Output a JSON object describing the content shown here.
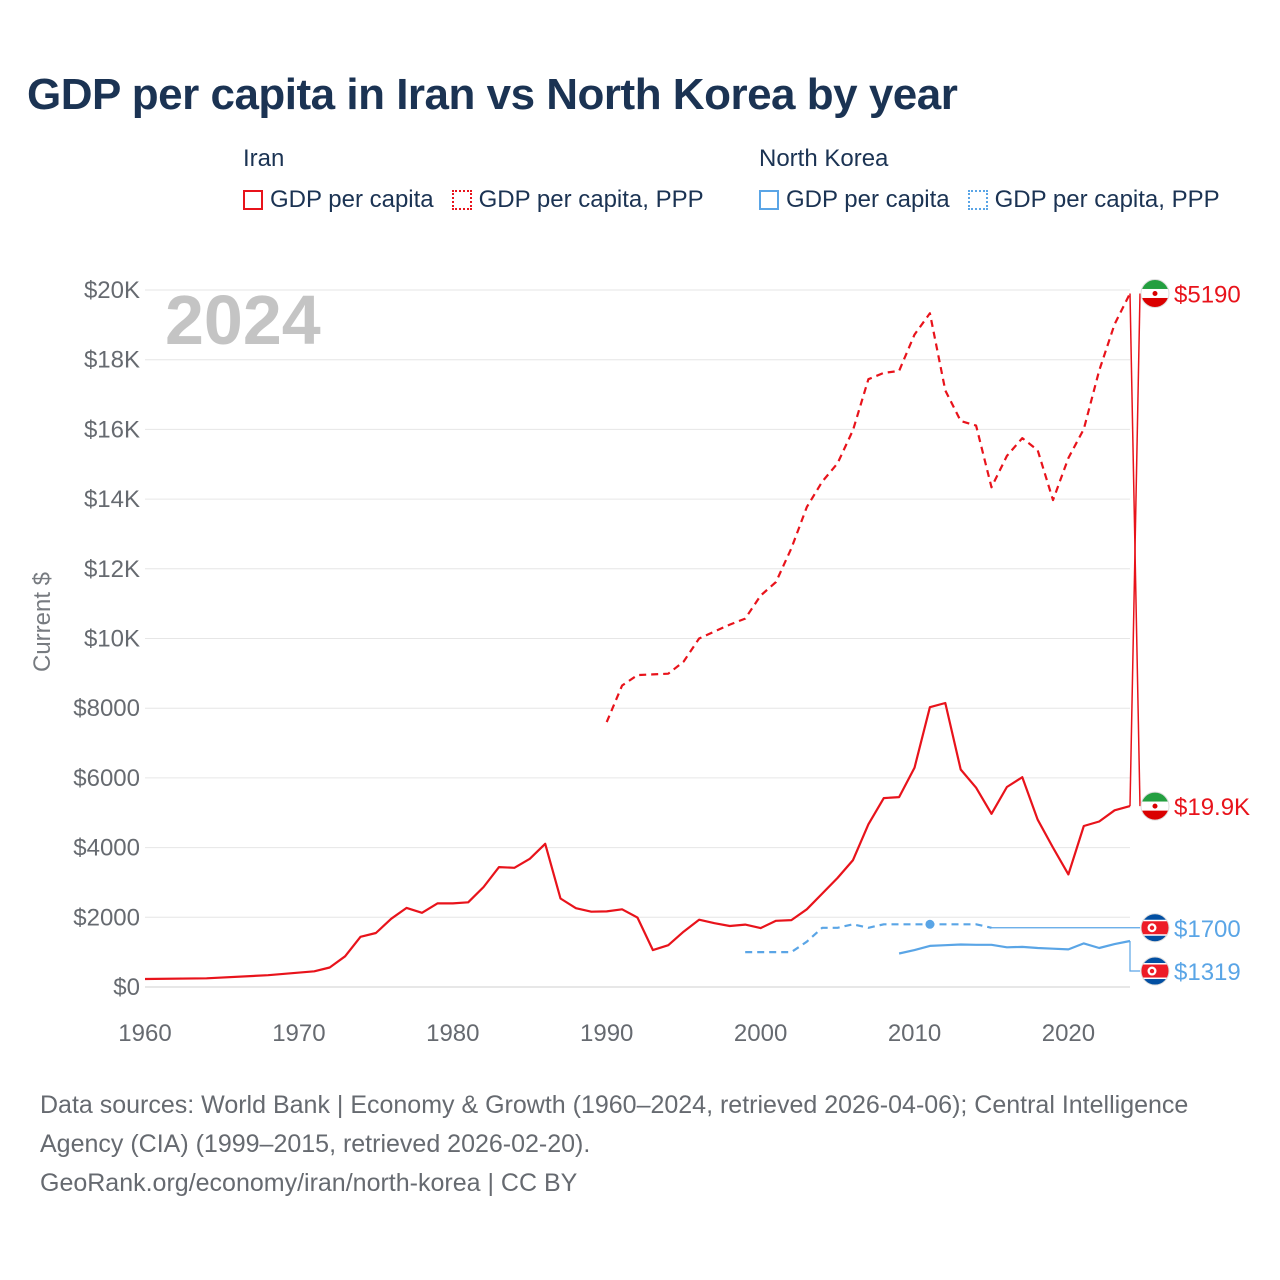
{
  "title": "GDP per capita in Iran vs North Korea by year",
  "legend": {
    "groups": [
      {
        "name": "Iran",
        "color": "#e8131b",
        "items": [
          {
            "label": "GDP per capita",
            "style": "solid"
          },
          {
            "label": "GDP per capita, PPP",
            "style": "dotted"
          }
        ]
      },
      {
        "name": "North Korea",
        "color": "#5aa5e6",
        "items": [
          {
            "label": "GDP per capita",
            "style": "solid"
          },
          {
            "label": "GDP per capita, PPP",
            "style": "dotted"
          }
        ]
      }
    ]
  },
  "footer": {
    "line1": "Data sources: World Bank | Economy & Growth (1960–2024, retrieved 2026-04-06); Central Intelligence Agency (CIA) (1999–2015, retrieved 2026-02-20).",
    "line2": "GeoRank.org/economy/iran/north-korea | CC BY"
  },
  "chart_data": {
    "type": "line",
    "title": "GDP per capita in Iran vs North Korea by year",
    "year_label": "2024",
    "ylabel": "Current $",
    "xlabel": "",
    "xlim": [
      1960,
      2024
    ],
    "ylim": [
      0,
      20000
    ],
    "grid": true,
    "x_ticks": [
      1960,
      1970,
      1980,
      1990,
      2000,
      2010,
      2020
    ],
    "x_tick_labels": [
      "1960",
      "1970",
      "1980",
      "1990",
      "2000",
      "2010",
      "2020"
    ],
    "y_ticks": [
      0,
      2000,
      4000,
      6000,
      8000,
      10000,
      12000,
      14000,
      16000,
      18000,
      20000
    ],
    "y_tick_labels": [
      "$0",
      "$2000",
      "$4000",
      "$6000",
      "$8000",
      "$10K",
      "$12K",
      "$14K",
      "$16K",
      "$18K",
      "$20K"
    ],
    "series": [
      {
        "name": "Iran GDP per capita",
        "country": "Iran",
        "color": "#e8131b",
        "dash": "solid",
        "end_label": "$5190",
        "flag": "iran",
        "x": [
          1960,
          1964,
          1968,
          1971,
          1972,
          1973,
          1974,
          1975,
          1976,
          1977,
          1978,
          1979,
          1980,
          1981,
          1982,
          1983,
          1984,
          1985,
          1986,
          1987,
          1988,
          1989,
          1990,
          1991,
          1992,
          1993,
          1994,
          1995,
          1996,
          1997,
          1998,
          1999,
          2000,
          2001,
          2002,
          2003,
          2004,
          2005,
          2006,
          2007,
          2008,
          2009,
          2010,
          2011,
          2012,
          2013,
          2014,
          2015,
          2016,
          2017,
          2018,
          2019,
          2020,
          2021,
          2022,
          2023,
          2024
        ],
        "y": [
          230,
          250,
          340,
          450,
          560,
          880,
          1440,
          1550,
          1960,
          2270,
          2130,
          2400,
          2400,
          2430,
          2870,
          3440,
          3420,
          3680,
          4110,
          2540,
          2260,
          2160,
          2170,
          2230,
          1990,
          1060,
          1200,
          1590,
          1930,
          1830,
          1750,
          1790,
          1690,
          1900,
          1920,
          2230,
          2680,
          3130,
          3640,
          4670,
          5420,
          5450,
          6290,
          8030,
          8150,
          6240,
          5720,
          4970,
          5740,
          6020,
          4800,
          4000,
          3230,
          4620,
          4750,
          5070,
          5190
        ]
      },
      {
        "name": "Iran GDP per capita, PPP",
        "country": "Iran",
        "color": "#e8131b",
        "dash": "dashed",
        "end_label": "$19.9K",
        "flag": "iran",
        "x": [
          1990,
          1991,
          1992,
          1993,
          1994,
          1995,
          1996,
          1997,
          1998,
          1999,
          2000,
          2001,
          2002,
          2003,
          2004,
          2005,
          2006,
          2007,
          2008,
          2009,
          2010,
          2011,
          2012,
          2013,
          2014,
          2015,
          2016,
          2017,
          2018,
          2019,
          2020,
          2021,
          2022,
          2023,
          2024
        ],
        "y": [
          7600,
          8650,
          8950,
          8970,
          8990,
          9340,
          10000,
          10200,
          10400,
          10570,
          11230,
          11620,
          12590,
          13770,
          14500,
          15030,
          15980,
          17440,
          17620,
          17680,
          18720,
          19330,
          17120,
          16240,
          16110,
          14340,
          15240,
          15750,
          15400,
          13970,
          15180,
          16010,
          17690,
          19020,
          19900
        ]
      },
      {
        "name": "North Korea GDP per capita",
        "country": "North Korea",
        "color": "#5aa5e6",
        "dash": "solid",
        "end_label": "$1319",
        "flag": "north-korea",
        "x": [
          2009,
          2010,
          2011,
          2012,
          2013,
          2014,
          2015,
          2016,
          2017,
          2018,
          2019,
          2020,
          2021,
          2022,
          2023,
          2024
        ],
        "y": [
          960,
          1060,
          1180,
          1200,
          1220,
          1210,
          1210,
          1140,
          1150,
          1120,
          1100,
          1080,
          1250,
          1120,
          1230,
          1319
        ]
      },
      {
        "name": "North Korea GDP per capita, PPP",
        "country": "North Korea",
        "color": "#5aa5e6",
        "dash": "dashed",
        "end_label": "$1700",
        "flag": "north-korea",
        "x": [
          1999,
          2000,
          2001,
          2002,
          2003,
          2004,
          2005,
          2006,
          2007,
          2008,
          2009,
          2010,
          2011,
          2012,
          2013,
          2014,
          2015
        ],
        "y": [
          1000,
          1000,
          1000,
          1000,
          1300,
          1700,
          1700,
          1800,
          1700,
          1800,
          1800,
          1800,
          1800,
          1800,
          1800,
          1800,
          1700
        ]
      }
    ]
  }
}
